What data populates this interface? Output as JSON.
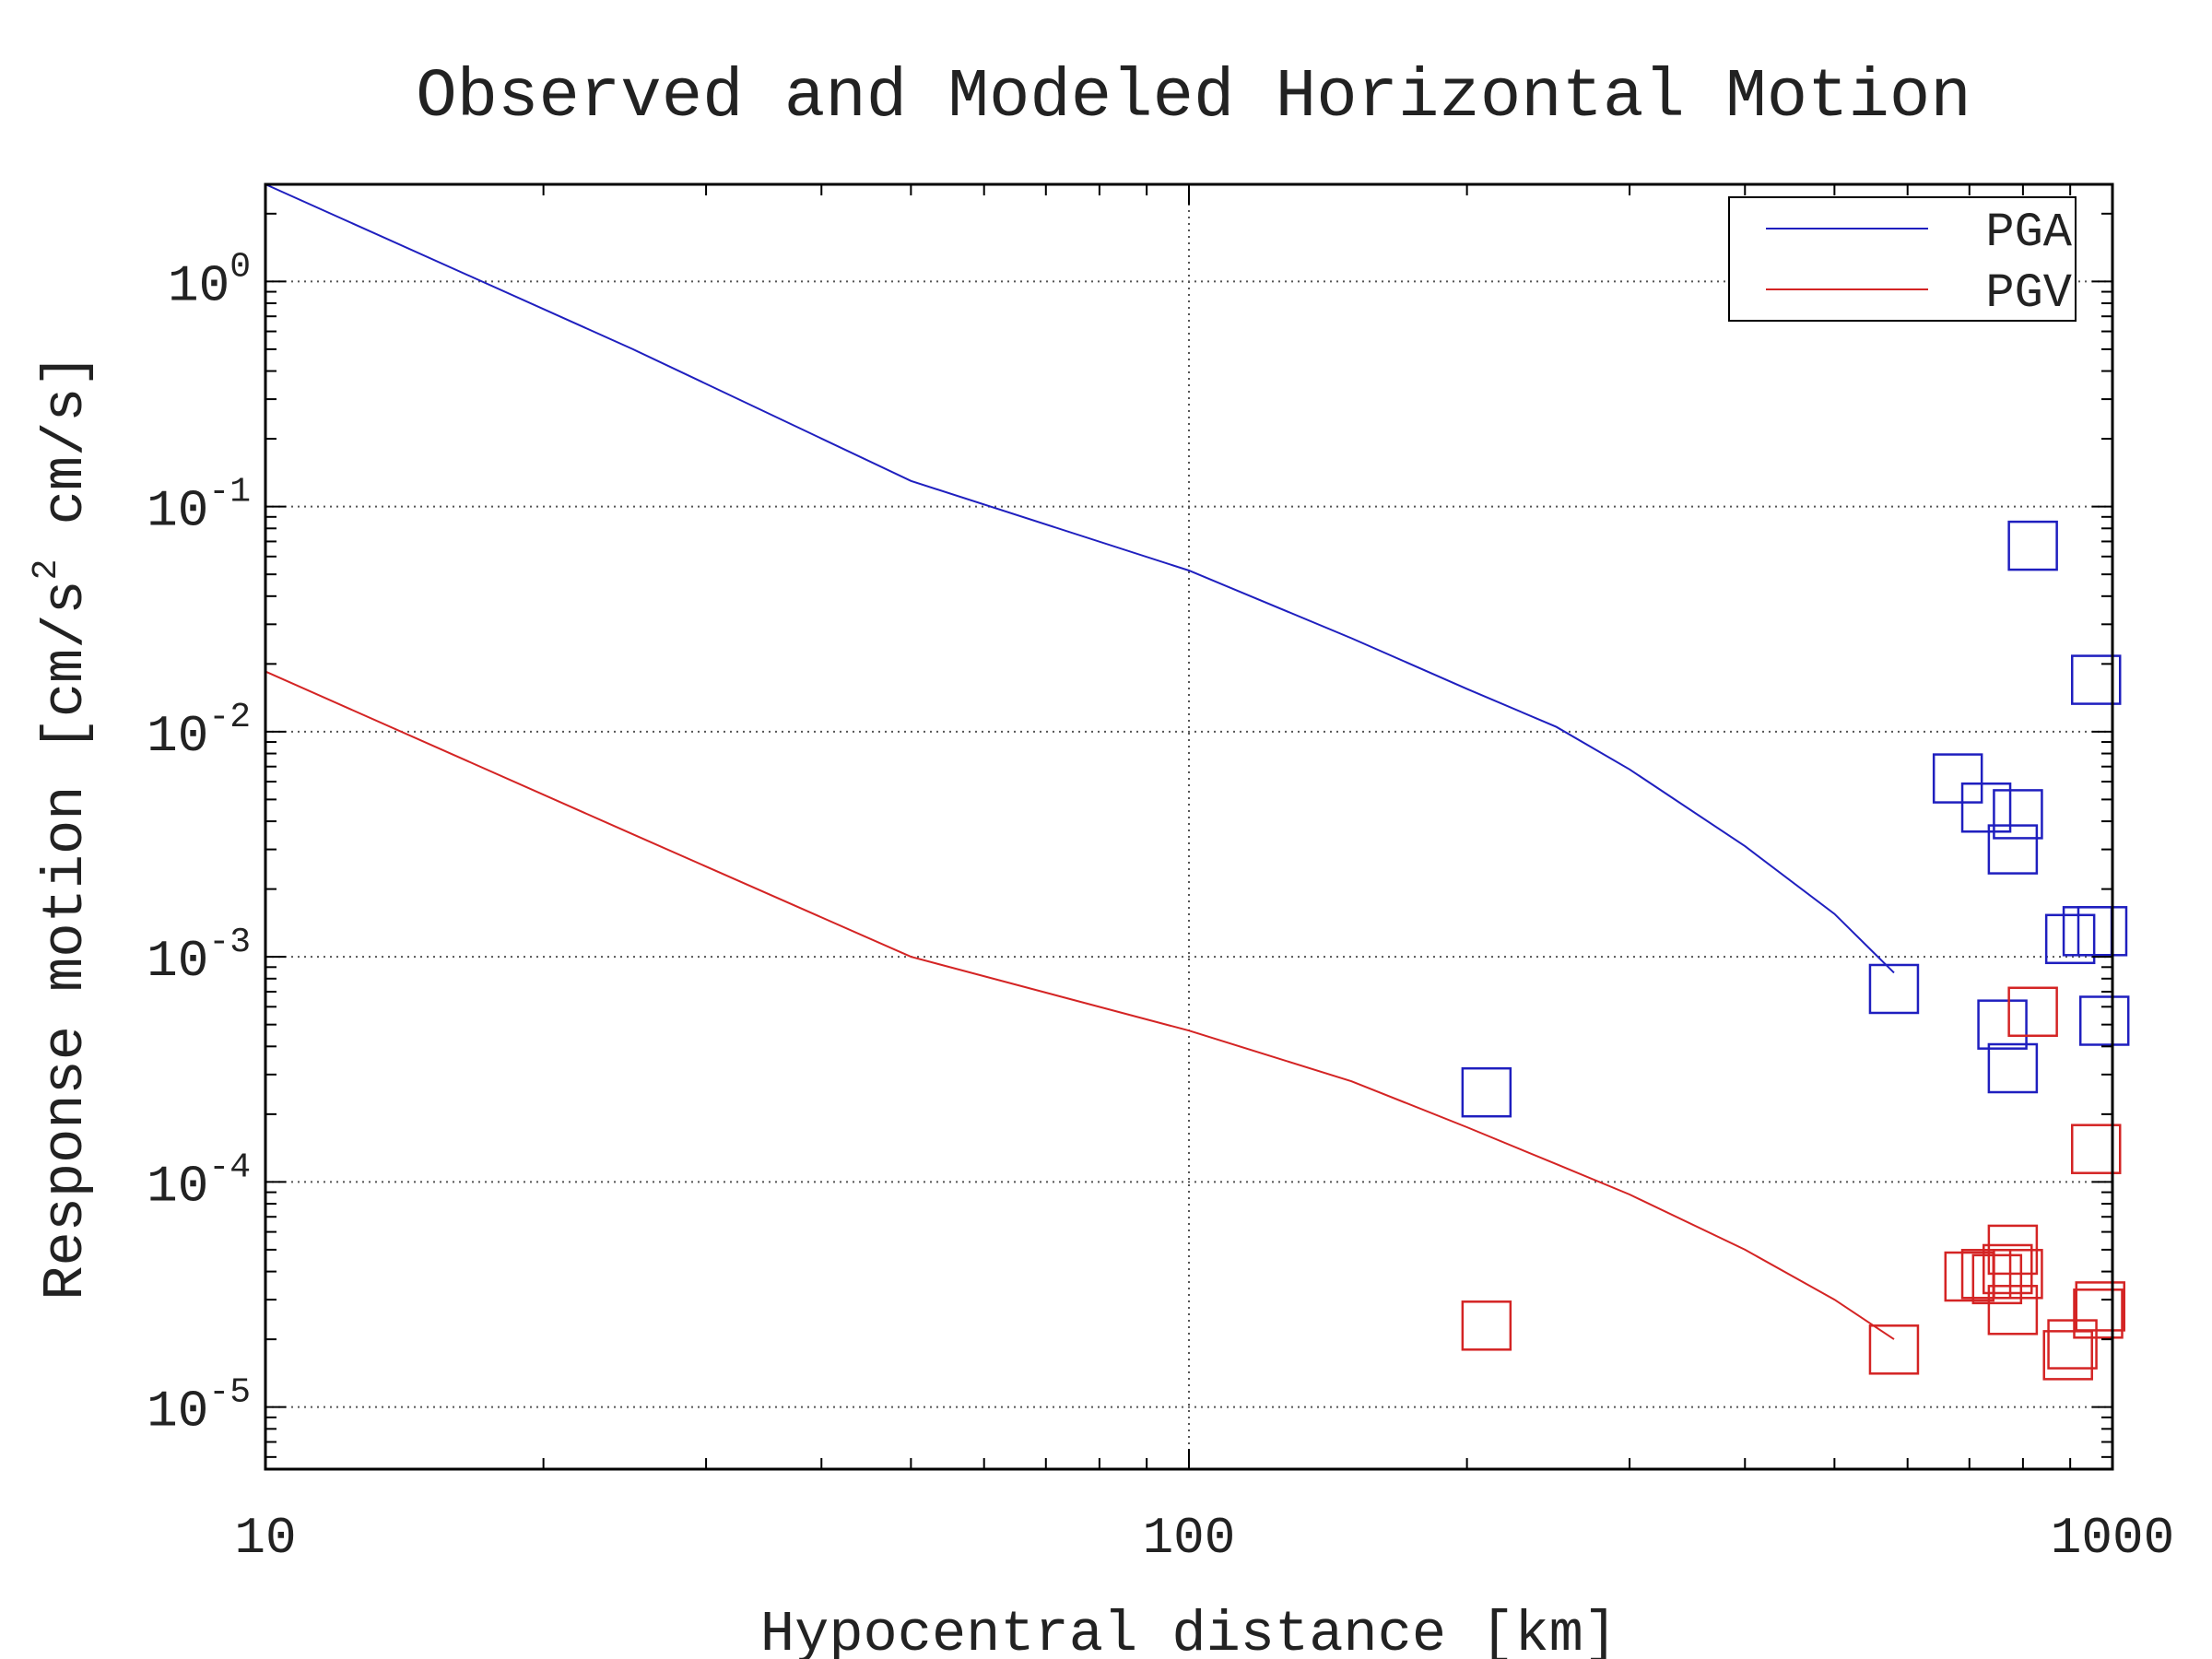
{
  "chart_data": {
    "type": "scatter",
    "title": "Observed and Modeled Horizontal Motion",
    "xlabel": "Hypocentral distance [km]",
    "ylabel": "Response motion  [cm/s",
    "ylabel_superscript": "2",
    "ylabel_suffix": "  cm/s]",
    "xscale": "log",
    "yscale": "log",
    "xlim": [
      10,
      1000
    ],
    "ylim": [
      5.3e-06,
      2.7
    ],
    "grid": true,
    "legend_position": "top-right",
    "x_ticks": [
      {
        "value": 10,
        "label": "10"
      },
      {
        "value": 100,
        "label": "100"
      },
      {
        "value": 1000,
        "label": "1000"
      }
    ],
    "y_ticks": [
      {
        "value": 1e-05,
        "base": "10",
        "exp": "-5"
      },
      {
        "value": 0.0001,
        "base": "10",
        "exp": "-4"
      },
      {
        "value": 0.001,
        "base": "10",
        "exp": "-3"
      },
      {
        "value": 0.01,
        "base": "10",
        "exp": "-2"
      },
      {
        "value": 0.1,
        "base": "10",
        "exp": "-1"
      },
      {
        "value": 1,
        "base": "10",
        "exp": "0"
      }
    ],
    "series": [
      {
        "name": "PGA",
        "color": "#1f1fbf",
        "line": [
          [
            10,
            2.7
          ],
          [
            25,
            0.5
          ],
          [
            50,
            0.13
          ],
          [
            100,
            0.052
          ],
          [
            150,
            0.026
          ],
          [
            200,
            0.0155
          ],
          [
            250,
            0.0105
          ],
          [
            300,
            0.0068
          ],
          [
            400,
            0.0031
          ],
          [
            500,
            0.00155
          ],
          [
            580,
            0.00085
          ]
        ],
        "observed": [
          [
            210,
            0.00025
          ],
          [
            580,
            0.00072
          ],
          [
            680,
            0.0062
          ],
          [
            730,
            0.0046
          ],
          [
            760,
            0.0005
          ],
          [
            790,
            0.0043
          ],
          [
            780,
            0.003
          ],
          [
            780,
            0.00032
          ],
          [
            820,
            0.067
          ],
          [
            960,
            0.017
          ],
          [
            940,
            0.0013
          ],
          [
            975,
            0.0013
          ],
          [
            900,
            0.0012
          ],
          [
            980,
            0.00052
          ]
        ]
      },
      {
        "name": "PGV",
        "color": "#d42424",
        "line": [
          [
            10,
            0.0185
          ],
          [
            25,
            0.0035
          ],
          [
            50,
            0.001
          ],
          [
            100,
            0.00047
          ],
          [
            150,
            0.00028
          ],
          [
            200,
            0.000175
          ],
          [
            250,
            0.00012
          ],
          [
            300,
            8.8e-05
          ],
          [
            400,
            5e-05
          ],
          [
            500,
            3e-05
          ],
          [
            580,
            2e-05
          ]
        ],
        "observed": [
          [
            210,
            2.3e-05
          ],
          [
            580,
            1.8e-05
          ],
          [
            700,
            3.8e-05
          ],
          [
            730,
            3.9e-05
          ],
          [
            750,
            3.7e-05
          ],
          [
            770,
            4.1e-05
          ],
          [
            780,
            5e-05
          ],
          [
            790,
            3.9e-05
          ],
          [
            780,
            2.7e-05
          ],
          [
            820,
            0.00057
          ],
          [
            960,
            0.00014
          ],
          [
            970,
            2.8e-05
          ],
          [
            965,
            2.6e-05
          ],
          [
            895,
            1.7e-05
          ],
          [
            905,
            1.9e-05
          ]
        ]
      }
    ]
  }
}
